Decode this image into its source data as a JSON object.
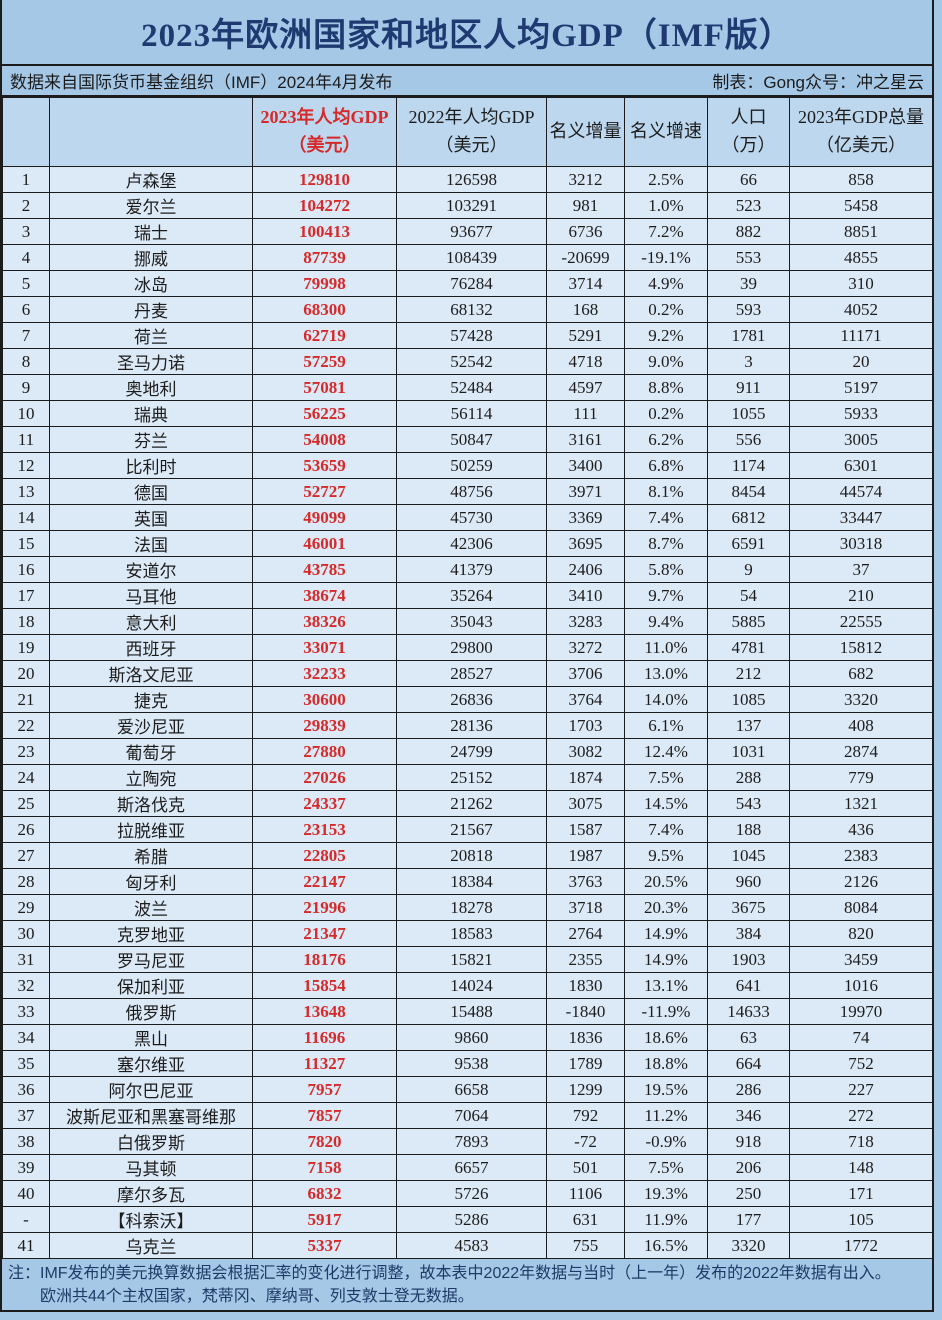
{
  "page": {
    "title": "2023年欧洲国家和地区人均GDP（IMF版）",
    "subtitle_left": "数据来自国际货币基金组织（IMF）2024年4月发布",
    "subtitle_right": "制表：Gong众号：冲之星云",
    "note_line_1": "注：IMF发布的美元换算数据会根据汇率的变化进行调整，故本表中2022年数据与当时（上一年）发布的2022年数据有出入。",
    "note_line_2": "欧洲共44个主权国家，梵蒂冈、摩纳哥、列支敦士登无数据。"
  },
  "colors": {
    "band_background": "#a6c8e7",
    "header_background": "#bdd7ee",
    "row_background": "#dce9f6",
    "accent_red": "#d62a2a",
    "title_navy": "#1e3a70",
    "border": "#1c1c1c"
  },
  "chart_data": {
    "type": "table",
    "title": "2023年欧洲国家和地区人均GDP（IMF版）",
    "column_keys": [
      "rank",
      "country",
      "gdp-per-capita-2023",
      "gdp-per-capita-2022",
      "nominal-increase",
      "nominal-growth-rate",
      "population-10k",
      "gdp-total-2023"
    ],
    "headers": [
      {
        "l1": "",
        "l2": ""
      },
      {
        "l1": "",
        "l2": ""
      },
      {
        "l1": "2023年人均GDP",
        "l2": "（美元）"
      },
      {
        "l1": "2022年人均GDP",
        "l2": "（美元）"
      },
      {
        "l1": "名义增量",
        "l2": ""
      },
      {
        "l1": "名义增速",
        "l2": ""
      },
      {
        "l1": "人口",
        "l2": "（万）"
      },
      {
        "l1": "2023年GDP总量",
        "l2": "（亿美元）"
      }
    ],
    "rows": [
      [
        "1",
        "卢森堡",
        "129810",
        "126598",
        "3212",
        "2.5%",
        "66",
        "858"
      ],
      [
        "2",
        "爱尔兰",
        "104272",
        "103291",
        "981",
        "1.0%",
        "523",
        "5458"
      ],
      [
        "3",
        "瑞士",
        "100413",
        "93677",
        "6736",
        "7.2%",
        "882",
        "8851"
      ],
      [
        "4",
        "挪威",
        "87739",
        "108439",
        "-20699",
        "-19.1%",
        "553",
        "4855"
      ],
      [
        "5",
        "冰岛",
        "79998",
        "76284",
        "3714",
        "4.9%",
        "39",
        "310"
      ],
      [
        "6",
        "丹麦",
        "68300",
        "68132",
        "168",
        "0.2%",
        "593",
        "4052"
      ],
      [
        "7",
        "荷兰",
        "62719",
        "57428",
        "5291",
        "9.2%",
        "1781",
        "11171"
      ],
      [
        "8",
        "圣马力诺",
        "57259",
        "52542",
        "4718",
        "9.0%",
        "3",
        "20"
      ],
      [
        "9",
        "奥地利",
        "57081",
        "52484",
        "4597",
        "8.8%",
        "911",
        "5197"
      ],
      [
        "10",
        "瑞典",
        "56225",
        "56114",
        "111",
        "0.2%",
        "1055",
        "5933"
      ],
      [
        "11",
        "芬兰",
        "54008",
        "50847",
        "3161",
        "6.2%",
        "556",
        "3005"
      ],
      [
        "12",
        "比利时",
        "53659",
        "50259",
        "3400",
        "6.8%",
        "1174",
        "6301"
      ],
      [
        "13",
        "德国",
        "52727",
        "48756",
        "3971",
        "8.1%",
        "8454",
        "44574"
      ],
      [
        "14",
        "英国",
        "49099",
        "45730",
        "3369",
        "7.4%",
        "6812",
        "33447"
      ],
      [
        "15",
        "法国",
        "46001",
        "42306",
        "3695",
        "8.7%",
        "6591",
        "30318"
      ],
      [
        "16",
        "安道尔",
        "43785",
        "41379",
        "2406",
        "5.8%",
        "9",
        "37"
      ],
      [
        "17",
        "马耳他",
        "38674",
        "35264",
        "3410",
        "9.7%",
        "54",
        "210"
      ],
      [
        "18",
        "意大利",
        "38326",
        "35043",
        "3283",
        "9.4%",
        "5885",
        "22555"
      ],
      [
        "19",
        "西班牙",
        "33071",
        "29800",
        "3272",
        "11.0%",
        "4781",
        "15812"
      ],
      [
        "20",
        "斯洛文尼亚",
        "32233",
        "28527",
        "3706",
        "13.0%",
        "212",
        "682"
      ],
      [
        "21",
        "捷克",
        "30600",
        "26836",
        "3764",
        "14.0%",
        "1085",
        "3320"
      ],
      [
        "22",
        "爱沙尼亚",
        "29839",
        "28136",
        "1703",
        "6.1%",
        "137",
        "408"
      ],
      [
        "23",
        "葡萄牙",
        "27880",
        "24799",
        "3082",
        "12.4%",
        "1031",
        "2874"
      ],
      [
        "24",
        "立陶宛",
        "27026",
        "25152",
        "1874",
        "7.5%",
        "288",
        "779"
      ],
      [
        "25",
        "斯洛伐克",
        "24337",
        "21262",
        "3075",
        "14.5%",
        "543",
        "1321"
      ],
      [
        "26",
        "拉脱维亚",
        "23153",
        "21567",
        "1587",
        "7.4%",
        "188",
        "436"
      ],
      [
        "27",
        "希腊",
        "22805",
        "20818",
        "1987",
        "9.5%",
        "1045",
        "2383"
      ],
      [
        "28",
        "匈牙利",
        "22147",
        "18384",
        "3763",
        "20.5%",
        "960",
        "2126"
      ],
      [
        "29",
        "波兰",
        "21996",
        "18278",
        "3718",
        "20.3%",
        "3675",
        "8084"
      ],
      [
        "30",
        "克罗地亚",
        "21347",
        "18583",
        "2764",
        "14.9%",
        "384",
        "820"
      ],
      [
        "31",
        "罗马尼亚",
        "18176",
        "15821",
        "2355",
        "14.9%",
        "1903",
        "3459"
      ],
      [
        "32",
        "保加利亚",
        "15854",
        "14024",
        "1830",
        "13.1%",
        "641",
        "1016"
      ],
      [
        "33",
        "俄罗斯",
        "13648",
        "15488",
        "-1840",
        "-11.9%",
        "14633",
        "19970"
      ],
      [
        "34",
        "黑山",
        "11696",
        "9860",
        "1836",
        "18.6%",
        "63",
        "74"
      ],
      [
        "35",
        "塞尔维亚",
        "11327",
        "9538",
        "1789",
        "18.8%",
        "664",
        "752"
      ],
      [
        "36",
        "阿尔巴尼亚",
        "7957",
        "6658",
        "1299",
        "19.5%",
        "286",
        "227"
      ],
      [
        "37",
        "波斯尼亚和黑塞哥维那",
        "7857",
        "7064",
        "792",
        "11.2%",
        "346",
        "272"
      ],
      [
        "38",
        "白俄罗斯",
        "7820",
        "7893",
        "-72",
        "-0.9%",
        "918",
        "718"
      ],
      [
        "39",
        "马其顿",
        "7158",
        "6657",
        "501",
        "7.5%",
        "206",
        "148"
      ],
      [
        "40",
        "摩尔多瓦",
        "6832",
        "5726",
        "1106",
        "19.3%",
        "250",
        "171"
      ],
      [
        "-",
        "【科索沃】",
        "5917",
        "5286",
        "631",
        "11.9%",
        "177",
        "105"
      ],
      [
        "41",
        "乌克兰",
        "5337",
        "4583",
        "755",
        "16.5%",
        "3320",
        "1772"
      ]
    ]
  }
}
